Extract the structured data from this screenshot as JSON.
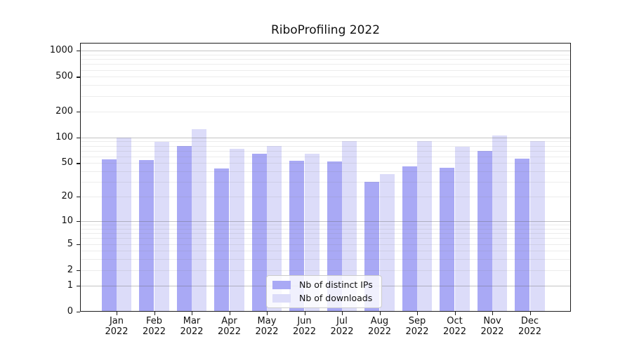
{
  "chart_data": {
    "type": "bar",
    "title": "RiboProfiling 2022",
    "categories": [
      "Jan 2022",
      "Feb 2022",
      "Mar 2022",
      "Apr 2022",
      "May 2022",
      "Jun 2022",
      "Jul 2022",
      "Aug 2022",
      "Sep 2022",
      "Oct 2022",
      "Nov 2022",
      "Dec 2022"
    ],
    "category_line1": [
      "Jan",
      "Feb",
      "Mar",
      "Apr",
      "May",
      "Jun",
      "Jul",
      "Aug",
      "Sep",
      "Oct",
      "Nov",
      "Dec"
    ],
    "category_line2": "2022",
    "series": [
      {
        "name": "Nb of distinct IPs",
        "color": "#a9a9f5",
        "values": [
          55,
          54,
          80,
          43,
          64,
          53,
          52,
          30,
          46,
          44,
          69,
          56
        ]
      },
      {
        "name": "Nb of downloads",
        "color": "#dcdcf9",
        "values": [
          100,
          89,
          125,
          73,
          79,
          65,
          91,
          37,
          91,
          78,
          105,
          91
        ]
      }
    ],
    "yscale": "symlog (log10(1+v))",
    "ylim": [
      0,
      1230
    ],
    "yticks": [
      0,
      1,
      2,
      5,
      10,
      20,
      50,
      100,
      200,
      500,
      1000
    ],
    "major_gridlines": [
      1,
      10,
      100,
      1000
    ],
    "minor_gridlines": [
      2,
      3,
      4,
      5,
      6,
      7,
      8,
      9,
      20,
      30,
      40,
      50,
      60,
      70,
      80,
      90,
      200,
      300,
      400,
      500,
      600,
      700,
      800,
      900
    ],
    "grid": "horizontal major+minor, drawn over bars",
    "legend_position": "lower center",
    "colors": {
      "distinct_ips": "#a9a9f5",
      "downloads": "#dcdcf9",
      "major_grid": "rgba(100,100,100,0.38)",
      "minor_grid": "rgba(120,120,120,0.14)",
      "axis": "#1c1c1c",
      "background": "#ffffff"
    }
  }
}
